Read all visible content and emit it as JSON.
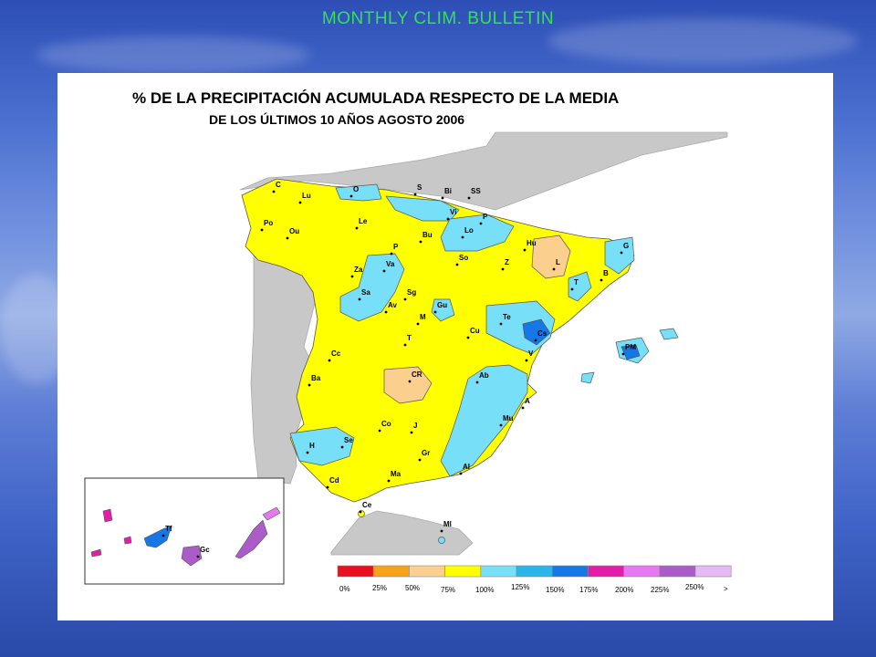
{
  "header": {
    "bulletin_title": "MONTHLY CLIM. BULLETIN"
  },
  "map": {
    "title_line1": "% DE LA PRECIPITACIÓN ACUMULADA RESPECTO DE LA MEDIA",
    "title_line2": "DE LOS  ÚLTIMOS 10  AÑOS  AGOSTO 2006"
  },
  "stations": [
    "C",
    "Lu",
    "O",
    "S",
    "Bi",
    "SS",
    "Vi",
    "P",
    "Lo",
    "Po",
    "Ou",
    "Le",
    "Bu",
    "Hu",
    "G",
    "P",
    "Va",
    "Za",
    "So",
    "Z",
    "L",
    "B",
    "Sa",
    "Sg",
    "Av",
    "Gu",
    "T",
    "M",
    "Te",
    "Cs",
    "Cu",
    "T",
    "Cc",
    "V",
    "PM",
    "Ba",
    "CR",
    "Ab",
    "A",
    "Co",
    "J",
    "Mu",
    "H",
    "Se",
    "Gr",
    "Al",
    "Cd",
    "Ma",
    "Ce",
    "Ml",
    "Tf",
    "Gc"
  ],
  "legend": {
    "labels": [
      "0%",
      "25%",
      "50%",
      "75%",
      "100%",
      "125%",
      "150%",
      "175%",
      "200%",
      "225%",
      "250%",
      ">"
    ],
    "colors": [
      "#e8101c",
      "#f7a31a",
      "#fbd08f",
      "#ffff00",
      "#77dff7",
      "#29b6e8",
      "#1677e6",
      "#e01ea8",
      "#e878f2",
      "#ab5cc8",
      "#e6b9f5"
    ]
  },
  "colors": {
    "yellow_class": "#ffff00",
    "lightblue_class": "#77dff7",
    "orange_class": "#fbd08f",
    "blue_class": "#1677e6",
    "magenta_class": "#e01ea8",
    "violet_class": "#ab5cc8",
    "land_gray": "#c8c8c8"
  }
}
